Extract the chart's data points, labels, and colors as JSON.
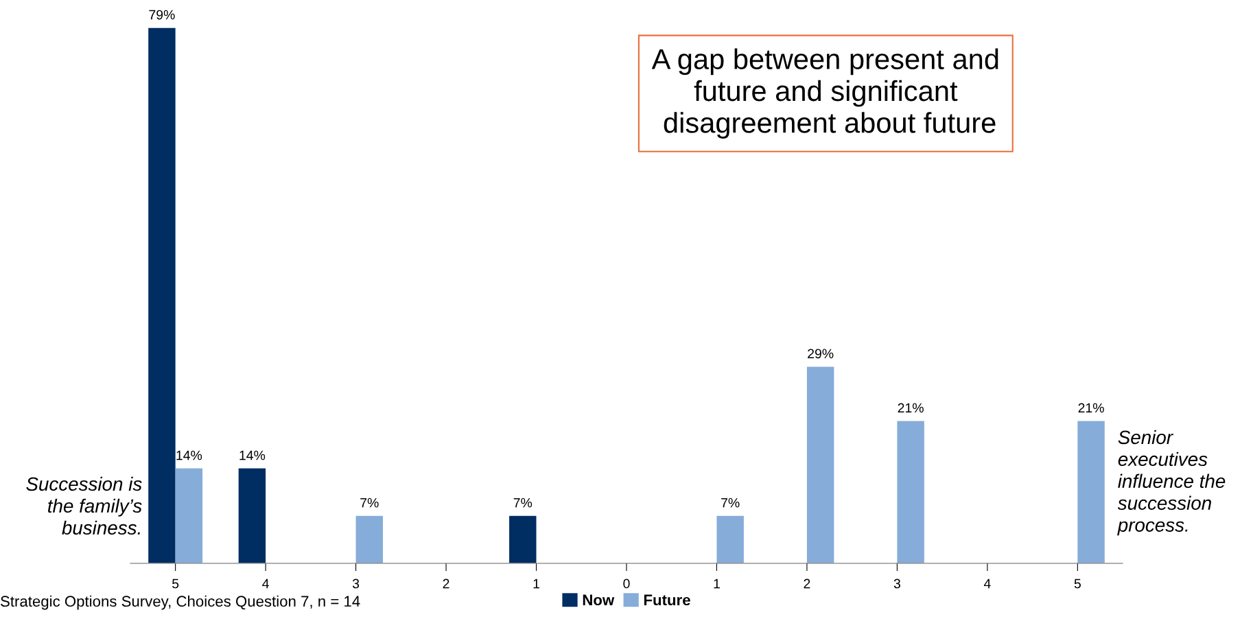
{
  "chart_data": {
    "type": "bar",
    "title": "A gap between present and\nfuture and significant\n disagreement about future",
    "categories": [
      "5",
      "4",
      "3",
      "2",
      "1",
      "0",
      "1",
      "2",
      "3",
      "4",
      "5"
    ],
    "series": [
      {
        "name": "Now",
        "color": "#002d62",
        "values": [
          79,
          14,
          0,
          0,
          7,
          0,
          0,
          0,
          0,
          0,
          0
        ],
        "value_labels": [
          "79%",
          "14%",
          null,
          null,
          "7%",
          null,
          null,
          null,
          null,
          null,
          null
        ]
      },
      {
        "name": "Future",
        "color": "#86acd9",
        "values": [
          14,
          0,
          7,
          0,
          0,
          0,
          7,
          29,
          21,
          0,
          21
        ],
        "value_labels": [
          "14%",
          null,
          "7%",
          null,
          null,
          null,
          "7%",
          "29%",
          "21%",
          null,
          "21%"
        ]
      }
    ],
    "annotations": [
      "Succession is\nthe family’s\nbusiness.",
      "Senior\nexecutives\ninfluence the\nsuccession\nprocess.",
      "Strategic Options Survey, Choices Question 7, n = 14"
    ],
    "legend": "bottom",
    "grid": false
  }
}
